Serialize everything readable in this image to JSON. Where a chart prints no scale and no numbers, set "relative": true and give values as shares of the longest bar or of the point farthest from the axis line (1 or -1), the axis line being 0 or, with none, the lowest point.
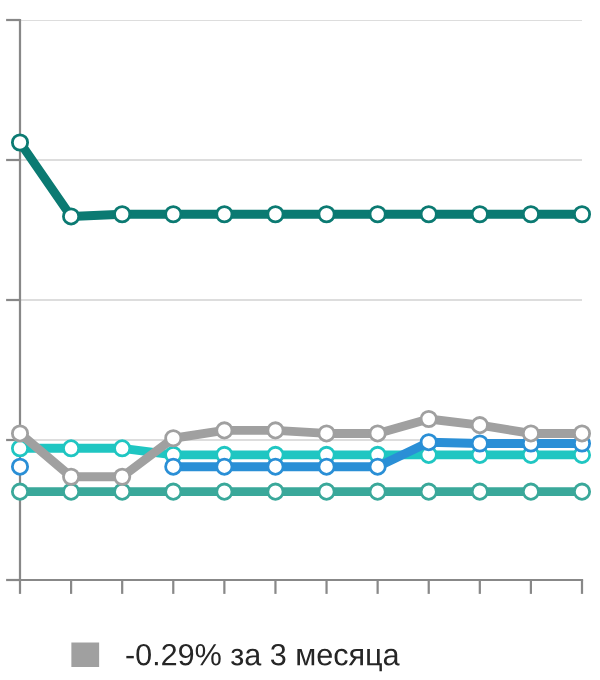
{
  "chart_data": {
    "type": "line",
    "relative": true,
    "grid": "y",
    "marker": "circle",
    "line_style": "solid",
    "legend": "bottom",
    "categories": [
      null,
      null,
      null,
      null,
      null,
      null,
      null,
      null,
      null,
      null,
      null,
      null
    ],
    "series": [
      {
        "color": "#3aa89a",
        "values": [
          0.202,
          0.202,
          0.202,
          0.202,
          0.202,
          0.202,
          0.202,
          0.202,
          0.202,
          0.202,
          0.202,
          0.202
        ]
      },
      {
        "color": "#1fc6c2",
        "values": [
          0.301,
          0.301,
          0.301,
          0.286,
          0.286,
          0.286,
          0.286,
          0.286,
          0.286,
          0.286,
          0.286,
          0.286
        ]
      },
      {
        "color": "#2a8fd6",
        "values": [
          0.259,
          null,
          null,
          0.259,
          0.259,
          0.259,
          0.259,
          0.259,
          0.315,
          0.312,
          0.312,
          0.312
        ]
      },
      {
        "name": "-0.29% за 3 месяца",
        "color": "#a0a0a0",
        "values": [
          0.335,
          0.236,
          0.236,
          0.324,
          0.342,
          0.342,
          0.335,
          0.335,
          0.368,
          0.354,
          0.335,
          0.335
        ]
      },
      {
        "color": "#0b7a72",
        "values": [
          1.0,
          0.831,
          0.836,
          0.836,
          0.836,
          0.836,
          0.836,
          0.836,
          0.836,
          0.836,
          0.836,
          0.836
        ]
      }
    ]
  }
}
